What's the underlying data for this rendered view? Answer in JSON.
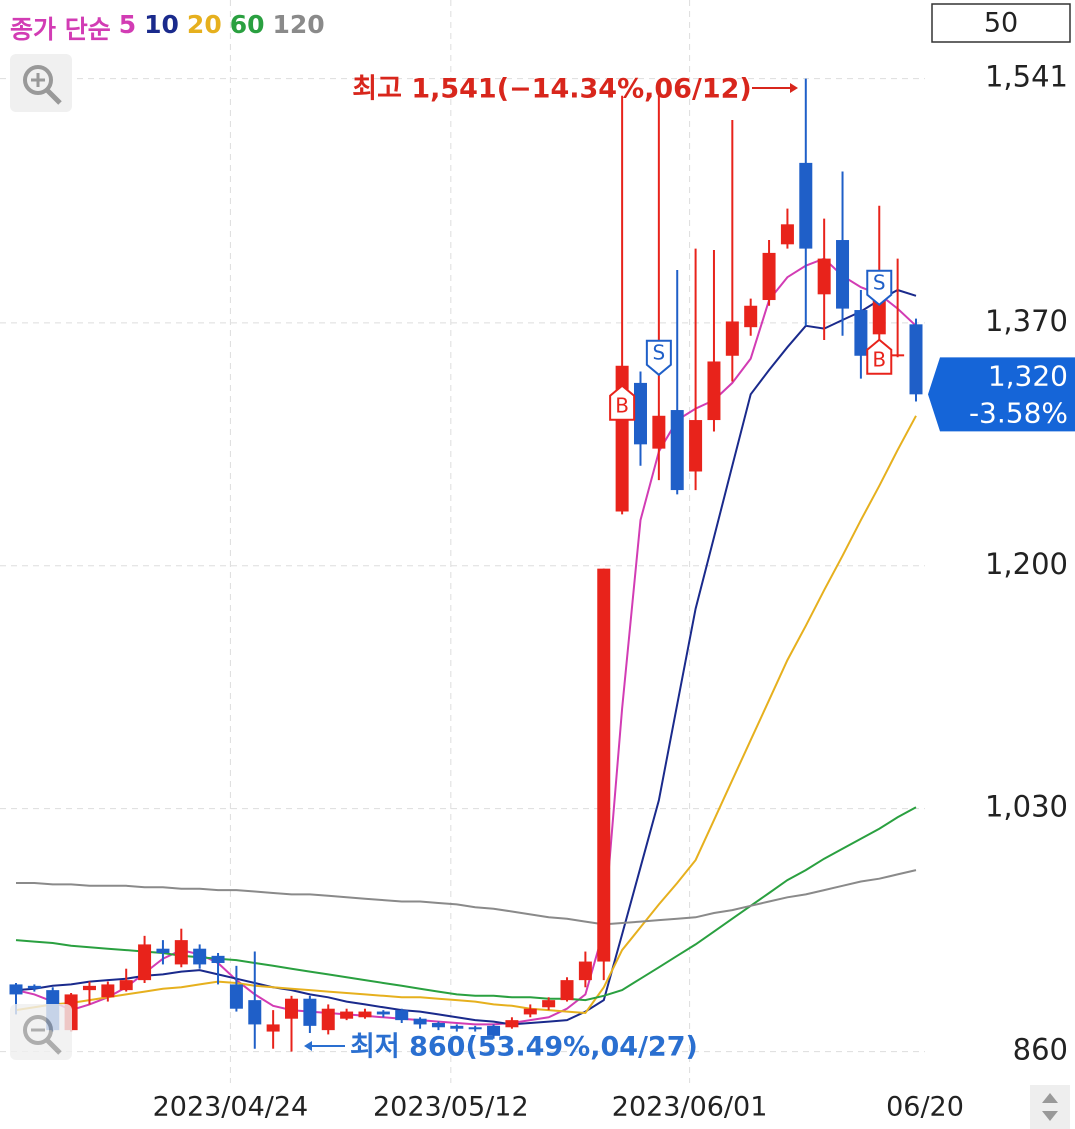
{
  "chart_data": {
    "type": "candlestick",
    "candle_count": "50",
    "ma_title": "종가 단순",
    "categories": [
      null,
      null,
      null,
      null,
      null,
      null,
      null,
      null,
      null,
      null,
      null,
      null,
      "2023/04/24",
      null,
      null,
      null,
      null,
      null,
      null,
      null,
      null,
      null,
      null,
      null,
      "2023/05/12",
      null,
      null,
      null,
      null,
      null,
      null,
      null,
      null,
      null,
      null,
      null,
      null,
      "2023/06/01",
      null,
      null,
      null,
      null,
      null,
      null,
      null,
      null,
      null,
      null,
      null,
      "06/20"
    ],
    "open": [
      907,
      906,
      903,
      875,
      903,
      898,
      903,
      910,
      932,
      921,
      932,
      927,
      907,
      896,
      874,
      883,
      897,
      875,
      883,
      884,
      888,
      889,
      883,
      880,
      878,
      877,
      878,
      877,
      886,
      891,
      896,
      910,
      923,
      1238,
      1328,
      1282,
      1309,
      1266,
      1302,
      1347,
      1367,
      1386,
      1425,
      1482,
      1390,
      1428,
      1379,
      1362,
      1347,
      1369
    ],
    "high": [
      908,
      907,
      905,
      901,
      909,
      909,
      918,
      941,
      938,
      946,
      935,
      929,
      920,
      930,
      889,
      899,
      899,
      893,
      890,
      890,
      889,
      890,
      884,
      881,
      879,
      878,
      879,
      884,
      893,
      898,
      912,
      930,
      1198,
      1529,
      1336,
      1529,
      1407,
      1422,
      1421,
      1512,
      1387,
      1428,
      1450,
      1541,
      1443,
      1476,
      1393,
      1452,
      1415,
      1373
    ],
    "low": [
      886,
      902,
      874,
      874,
      893,
      895,
      902,
      908,
      921,
      919,
      918,
      907,
      888,
      862,
      862,
      860,
      873,
      872,
      882,
      883,
      884,
      880,
      876,
      875,
      874,
      874,
      869,
      876,
      884,
      889,
      895,
      905,
      910,
      1236,
      1270,
      1260,
      1250,
      1253,
      1294,
      1329,
      1361,
      1382,
      1422,
      1368,
      1358,
      1361,
      1331,
      1355,
      1346,
      1315
    ],
    "close": [
      900,
      904,
      875,
      900,
      906,
      907,
      910,
      935,
      929,
      938,
      921,
      922,
      890,
      879,
      879,
      897,
      878,
      890,
      888,
      888,
      886,
      882,
      879,
      877,
      876,
      876,
      871,
      882,
      890,
      896,
      910,
      923,
      1198,
      1340,
      1285,
      1305,
      1253,
      1302,
      1343,
      1371,
      1382,
      1419,
      1439,
      1422,
      1415,
      1380,
      1347,
      1389,
      1348,
      1320
    ],
    "up_color": "#e8231b",
    "down_color": "#1f5fc8",
    "series": [
      {
        "name": "5",
        "color": "#d23cb4",
        "values": [
          903,
          900,
          895,
          889,
          893,
          898,
          905,
          915,
          925,
          931,
          928,
          922,
          910,
          900,
          892,
          889,
          888,
          887,
          886,
          885,
          884,
          883,
          882,
          881,
          880,
          879,
          879,
          880,
          882,
          884,
          890,
          900,
          945,
          1100,
          1232,
          1280,
          1302,
          1310,
          1316,
          1328,
          1345,
          1386,
          1402,
          1410,
          1415,
          1403,
          1395,
          1390,
          1380,
          1368
        ]
      },
      {
        "name": "10",
        "color": "#1a2a8c",
        "values": [
          903,
          904,
          906,
          907,
          909,
          910,
          911,
          913,
          914,
          916,
          917,
          914,
          911,
          908,
          905,
          903,
          900,
          898,
          895,
          893,
          891,
          889,
          888,
          886,
          884,
          882,
          881,
          879,
          880,
          881,
          882,
          888,
          896,
          942,
          989,
          1036,
          1103,
          1170,
          1220,
          1270,
          1320,
          1337,
          1353,
          1368,
          1366,
          1372,
          1378,
          1386,
          1393,
          1389
        ]
      },
      {
        "name": "20",
        "color": "#e6b01e",
        "values": [
          889,
          891,
          893,
          894,
          896,
          898,
          900,
          902,
          904,
          905,
          907,
          909,
          908,
          906,
          905,
          904,
          903,
          902,
          901,
          900,
          899,
          898,
          898,
          897,
          896,
          895,
          893,
          892,
          890,
          889,
          888,
          887,
          905,
          931,
          947,
          963,
          978,
          994,
          1022,
          1050,
          1078,
          1106,
          1134,
          1158,
          1183,
          1207,
          1232,
          1256,
          1281,
          1305
        ]
      },
      {
        "name": "60",
        "color": "#2aa040",
        "values": [
          938,
          937,
          936,
          934,
          933,
          932,
          931,
          930,
          929,
          927,
          926,
          925,
          924,
          922,
          920,
          918,
          916,
          914,
          912,
          910,
          908,
          906,
          904,
          902,
          900,
          899,
          899,
          898,
          898,
          897,
          897,
          896,
          899,
          903,
          911,
          919,
          927,
          935,
          944,
          953,
          962,
          971,
          980,
          987,
          995,
          1002,
          1009,
          1016,
          1024,
          1031
        ]
      },
      {
        "name": "120",
        "color": "#8a8a8a",
        "values": [
          978,
          978,
          977,
          977,
          976,
          976,
          976,
          975,
          975,
          974,
          974,
          973,
          973,
          972,
          971,
          970,
          970,
          969,
          968,
          967,
          966,
          965,
          965,
          964,
          963,
          961,
          960,
          958,
          956,
          954,
          953,
          951,
          949,
          950,
          951,
          952,
          953,
          954,
          957,
          959,
          962,
          965,
          968,
          970,
          973,
          976,
          979,
          981,
          984,
          987
        ]
      }
    ],
    "ylim": [
      838,
      1596
    ],
    "yticks": [
      860,
      {
        "value": 1030,
        "label": "1,030"
      },
      {
        "value": 1200,
        "label": "1,200"
      },
      {
        "value": 1370,
        "label": "1,370"
      },
      {
        "value": 1541,
        "label": "1,541"
      }
    ],
    "grid": true,
    "high_label": "최고 1,541(−14.34%,06/12)",
    "low_label": "최저 860(53.49%,04/27)",
    "price_label": "1,320",
    "change_label": "-3.58%",
    "signals": [
      {
        "label": "B",
        "index": 33
      },
      {
        "label": "S",
        "index": 35
      },
      {
        "label": "S",
        "index": 47
      },
      {
        "label": "B",
        "index": 47
      }
    ]
  }
}
